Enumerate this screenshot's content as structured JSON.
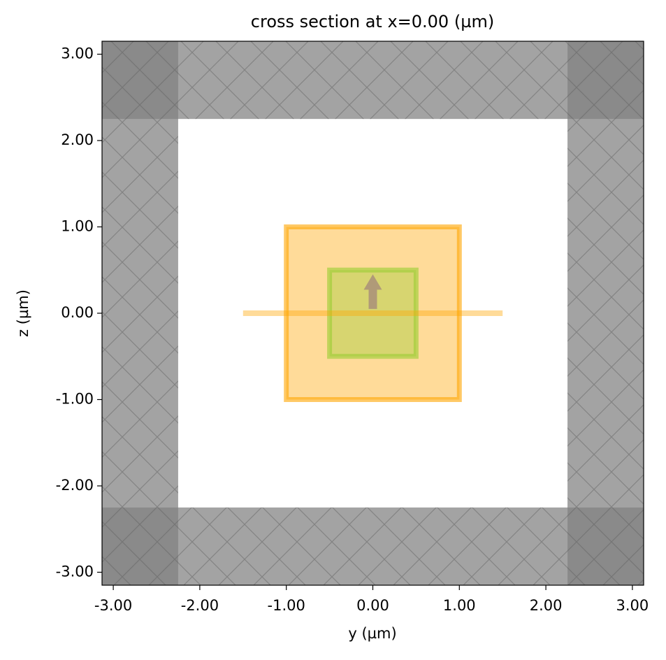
{
  "chart_data": {
    "type": "cross_section",
    "title": "cross section at x=0.00 (µm)",
    "x_label": "y (µm)",
    "y_label": "z (µm)",
    "xlim": [
      -3.13,
      3.13
    ],
    "ylim": [
      -3.15,
      3.15
    ],
    "xticks": [
      {
        "value": -3,
        "label": "-3.00"
      },
      {
        "value": -2,
        "label": "-2.00"
      },
      {
        "value": -1,
        "label": "-1.00"
      },
      {
        "value": 0,
        "label": "0.00"
      },
      {
        "value": 1,
        "label": "1.00"
      },
      {
        "value": 2,
        "label": "2.00"
      },
      {
        "value": 3,
        "label": "3.00"
      }
    ],
    "yticks": [
      {
        "value": -3,
        "label": "-3.00"
      },
      {
        "value": -2,
        "label": "-2.00"
      },
      {
        "value": -1,
        "label": "-1.00"
      },
      {
        "value": 0,
        "label": "0.00"
      },
      {
        "value": 1,
        "label": "1.00"
      },
      {
        "value": 2,
        "label": "2.00"
      },
      {
        "value": 3,
        "label": "3.00"
      }
    ],
    "pml_inner": 2.25,
    "pml_color": "#818181",
    "boxes": [
      {
        "y": [
          -1,
          1
        ],
        "z": [
          -1,
          1
        ],
        "color": "#ffa500"
      },
      {
        "y": [
          -0.5,
          0.5
        ],
        "z": [
          -0.5,
          0.5
        ],
        "color": "#9acd32"
      },
      {
        "y": [
          -1.5,
          1.5
        ],
        "z": [
          0,
          0
        ],
        "color": "#ffa500"
      }
    ],
    "arrow": {
      "y": [
        0,
        0
      ],
      "z": [
        0.05,
        0.45
      ],
      "color": "#b09a78"
    }
  }
}
